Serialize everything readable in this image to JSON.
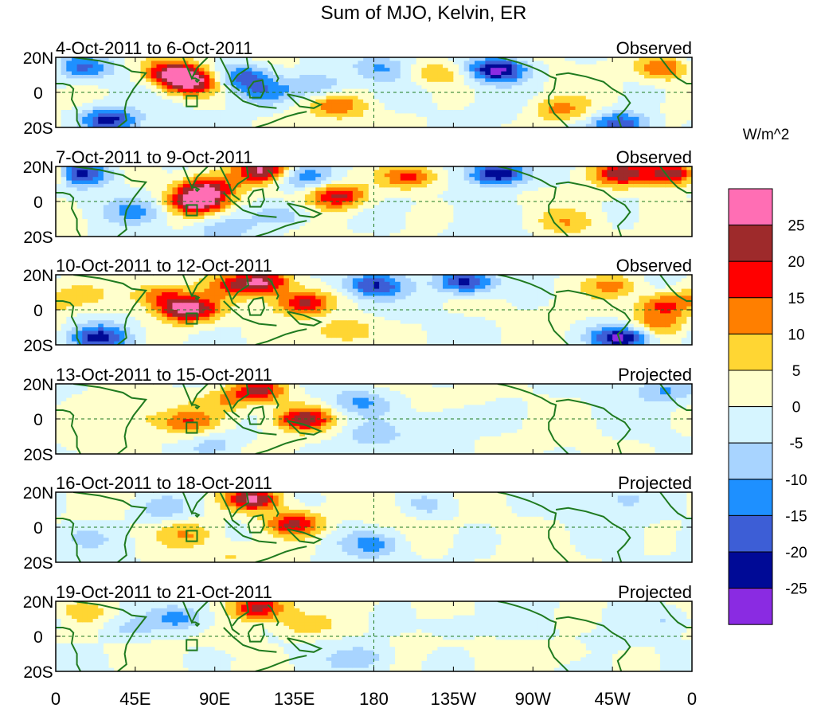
{
  "chart_data": {
    "type": "heatmap",
    "title": "Sum of MJO, Kelvin, ER",
    "colorbar": {
      "units": "W/m^2",
      "levels": [
        "25",
        "20",
        "15",
        "10",
        "5",
        "0",
        "-5",
        "-10",
        "-15",
        "-20",
        "-25"
      ],
      "colors": [
        "#ff6eb4",
        "#9e2a2b",
        "#ff0000",
        "#ff7f00",
        "#ffd633",
        "#ffffcc",
        "#d6f5ff",
        "#a8d4ff",
        "#1e90ff",
        "#3d5ed6",
        "#000a96",
        "#8a2be2"
      ]
    },
    "axes": {
      "x_ticks": [
        "0",
        "45E",
        "90E",
        "135E",
        "180",
        "135W",
        "90W",
        "45W",
        "0"
      ],
      "x_values": [
        0,
        45,
        90,
        135,
        180,
        225,
        270,
        315,
        360
      ],
      "y_ticks": [
        "20N",
        "0",
        "20S"
      ],
      "y_values": [
        20,
        0,
        -20
      ],
      "x_range": [
        0,
        360
      ],
      "y_range": [
        -20,
        20
      ]
    },
    "panels": [
      {
        "dates": "4-Oct-2011 to 6-Oct-2011",
        "status": "Observed"
      },
      {
        "dates": "7-Oct-2011 to 9-Oct-2011",
        "status": "Observed"
      },
      {
        "dates": "10-Oct-2011 to 12-Oct-2011",
        "status": "Observed"
      },
      {
        "dates": "13-Oct-2011 to 15-Oct-2011",
        "status": "Projected"
      },
      {
        "dates": "16-Oct-2011 to 18-Oct-2011",
        "status": "Projected"
      },
      {
        "dates": "19-Oct-2011 to 21-Oct-2011",
        "status": "Projected"
      }
    ],
    "anomaly_centers": [
      [
        {
          "lon": 75,
          "lat": 6,
          "value": 28
        },
        {
          "lon": 65,
          "lat": 12,
          "value": 20
        },
        {
          "lon": 148,
          "lat": 4,
          "value": -12
        },
        {
          "lon": 105,
          "lat": 9,
          "value": -18
        },
        {
          "lon": 250,
          "lat": 13,
          "value": -28
        },
        {
          "lon": 215,
          "lat": 11,
          "value": 10
        },
        {
          "lon": 160,
          "lat": -8,
          "value": 12
        },
        {
          "lon": 30,
          "lat": -16,
          "value": -22
        },
        {
          "lon": 15,
          "lat": 14,
          "value": -15
        },
        {
          "lon": 345,
          "lat": 14,
          "value": 16
        },
        {
          "lon": 285,
          "lat": -10,
          "value": 12
        },
        {
          "lon": 320,
          "lat": -18,
          "value": -20
        },
        {
          "lon": 185,
          "lat": 14,
          "value": -10
        },
        {
          "lon": 118,
          "lat": 0,
          "value": -12
        }
      ],
      [
        {
          "lon": 80,
          "lat": 0,
          "value": 28
        },
        {
          "lon": 85,
          "lat": 8,
          "value": 20
        },
        {
          "lon": 118,
          "lat": 18,
          "value": 25
        },
        {
          "lon": 200,
          "lat": 14,
          "value": 18
        },
        {
          "lon": 250,
          "lat": 16,
          "value": -28
        },
        {
          "lon": 160,
          "lat": 3,
          "value": 22
        },
        {
          "lon": 320,
          "lat": 16,
          "value": 22
        },
        {
          "lon": 350,
          "lat": 16,
          "value": 28
        },
        {
          "lon": 15,
          "lat": 16,
          "value": -22
        },
        {
          "lon": 130,
          "lat": -8,
          "value": -10
        },
        {
          "lon": 45,
          "lat": -5,
          "value": -10
        },
        {
          "lon": 95,
          "lat": -16,
          "value": -8
        },
        {
          "lon": 140,
          "lat": 14,
          "value": -12
        },
        {
          "lon": 290,
          "lat": -12,
          "value": 8
        }
      ],
      [
        {
          "lon": 75,
          "lat": 0,
          "value": 28
        },
        {
          "lon": 60,
          "lat": 8,
          "value": 15
        },
        {
          "lon": 140,
          "lat": 4,
          "value": 22
        },
        {
          "lon": 100,
          "lat": 14,
          "value": 12
        },
        {
          "lon": 118,
          "lat": 16,
          "value": 24
        },
        {
          "lon": 180,
          "lat": 14,
          "value": -20
        },
        {
          "lon": 232,
          "lat": 16,
          "value": -24
        },
        {
          "lon": 320,
          "lat": -16,
          "value": -28
        },
        {
          "lon": 315,
          "lat": 14,
          "value": 12
        },
        {
          "lon": 345,
          "lat": 3,
          "value": 18
        },
        {
          "lon": 340,
          "lat": -8,
          "value": 12
        },
        {
          "lon": 25,
          "lat": -16,
          "value": -20
        },
        {
          "lon": 10,
          "lat": 8,
          "value": 8
        },
        {
          "lon": 165,
          "lat": -12,
          "value": 12
        }
      ],
      [
        {
          "lon": 140,
          "lat": 0,
          "value": 24
        },
        {
          "lon": 115,
          "lat": 16,
          "value": 22
        },
        {
          "lon": 95,
          "lat": 10,
          "value": 8
        },
        {
          "lon": 75,
          "lat": -2,
          "value": 12
        },
        {
          "lon": 172,
          "lat": 10,
          "value": -10
        },
        {
          "lon": 180,
          "lat": -10,
          "value": -7
        },
        {
          "lon": 345,
          "lat": 16,
          "value": -10
        },
        {
          "lon": 45,
          "lat": 0,
          "value": 6
        },
        {
          "lon": 225,
          "lat": 0,
          "value": -6
        },
        {
          "lon": 20,
          "lat": -14,
          "value": 6
        },
        {
          "lon": 90,
          "lat": -14,
          "value": -8
        }
      ],
      [
        {
          "lon": 135,
          "lat": 2,
          "value": 22
        },
        {
          "lon": 112,
          "lat": 16,
          "value": 26
        },
        {
          "lon": 60,
          "lat": 10,
          "value": -8
        },
        {
          "lon": 75,
          "lat": -4,
          "value": 8
        },
        {
          "lon": 180,
          "lat": -10,
          "value": -10
        },
        {
          "lon": 210,
          "lat": 12,
          "value": -7
        },
        {
          "lon": 320,
          "lat": 16,
          "value": -6
        },
        {
          "lon": 15,
          "lat": -6,
          "value": -6
        },
        {
          "lon": 100,
          "lat": -16,
          "value": 5
        },
        {
          "lon": 185,
          "lat": 8,
          "value": 4
        }
      ],
      [
        {
          "lon": 115,
          "lat": 16,
          "value": 24
        },
        {
          "lon": 140,
          "lat": 6,
          "value": 8
        },
        {
          "lon": 70,
          "lat": 10,
          "value": -12
        },
        {
          "lon": 40,
          "lat": 4,
          "value": -6
        },
        {
          "lon": 100,
          "lat": 0,
          "value": 4
        },
        {
          "lon": 175,
          "lat": -12,
          "value": -8
        },
        {
          "lon": 225,
          "lat": 6,
          "value": -5
        },
        {
          "lon": 15,
          "lat": 14,
          "value": 5
        },
        {
          "lon": 290,
          "lat": -10,
          "value": 4
        },
        {
          "lon": 350,
          "lat": 10,
          "value": -6
        }
      ]
    ]
  }
}
